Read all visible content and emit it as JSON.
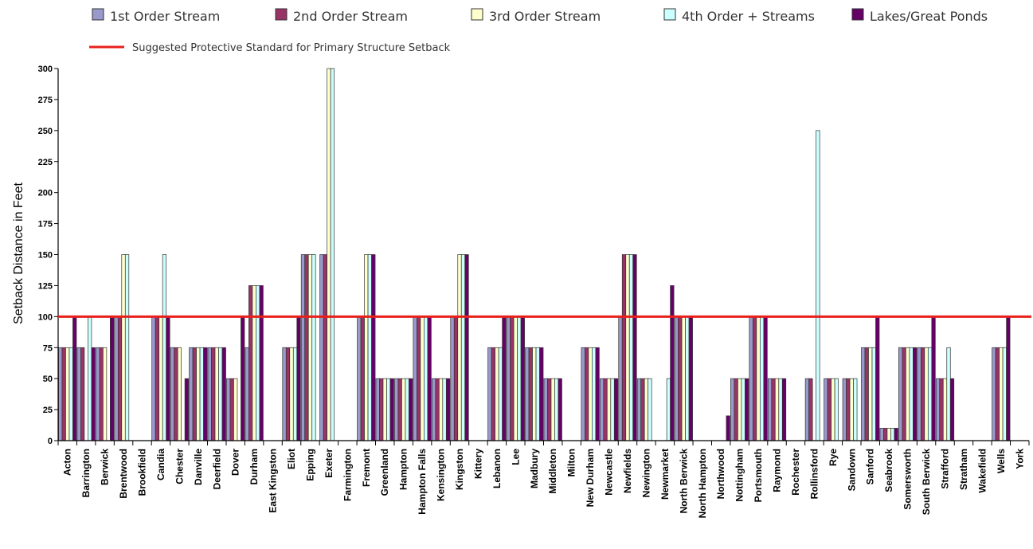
{
  "chart_data": {
    "type": "bar",
    "title": "",
    "xlabel": "",
    "ylabel": "Setback Distance in Feet",
    "ylim": [
      0,
      300
    ],
    "yticks": [
      0,
      25,
      50,
      75,
      100,
      125,
      150,
      175,
      200,
      225,
      250,
      275,
      300
    ],
    "grid": false,
    "legend_position": "top",
    "categories": [
      "Acton",
      "Barrington",
      "Berwick",
      "Brentwood",
      "Brookfield",
      "Candia",
      "Chester",
      "Danville",
      "Deerfield",
      "Dover",
      "Durham",
      "East Kingston",
      "Eliot",
      "Epping",
      "Exeter",
      "Farmington",
      "Fremont",
      "Greenland",
      "Hampton",
      "Hampton Falls",
      "Kensington",
      "Kingston",
      "Kittery",
      "Lebanon",
      "Lee",
      "Madbury",
      "Middleton",
      "Milton",
      "New Durham",
      "Newcastle",
      "Newfields",
      "Newington",
      "Newmarket",
      "North Berwick",
      "North Hampton",
      "Northwood",
      "Nottingham",
      "Portsmouth",
      "Raymond",
      "Rochester",
      "Rollinsford",
      "Rye",
      "Sandown",
      "Sanford",
      "Seabrook",
      "Somersworth",
      "South Berwick",
      "Strafford",
      "Stratham",
      "Wakefield",
      "Wells",
      "York"
    ],
    "series": [
      {
        "name": "1st Order Stream",
        "color": "#9999cc",
        "values": [
          75,
          75,
          75,
          100,
          null,
          100,
          75,
          75,
          75,
          50,
          75,
          null,
          75,
          150,
          150,
          null,
          100,
          50,
          50,
          100,
          50,
          100,
          null,
          75,
          100,
          75,
          50,
          null,
          75,
          50,
          100,
          50,
          null,
          100,
          null,
          null,
          50,
          100,
          50,
          null,
          50,
          50,
          50,
          75,
          10,
          75,
          75,
          50,
          null,
          null,
          75,
          null
        ]
      },
      {
        "name": "2nd Order Stream",
        "color": "#993366",
        "values": [
          75,
          75,
          75,
          100,
          null,
          100,
          75,
          75,
          75,
          50,
          125,
          null,
          75,
          150,
          150,
          null,
          100,
          50,
          50,
          100,
          50,
          100,
          null,
          75,
          100,
          75,
          50,
          null,
          75,
          50,
          150,
          50,
          null,
          100,
          null,
          null,
          50,
          100,
          50,
          null,
          50,
          50,
          50,
          75,
          10,
          75,
          75,
          50,
          null,
          null,
          75,
          null
        ]
      },
      {
        "name": "3rd Order Stream",
        "color": "#ffffcc",
        "values": [
          75,
          null,
          75,
          150,
          null,
          100,
          75,
          75,
          75,
          50,
          125,
          null,
          75,
          150,
          300,
          null,
          150,
          50,
          50,
          100,
          50,
          150,
          null,
          75,
          100,
          75,
          50,
          null,
          75,
          50,
          150,
          50,
          null,
          100,
          null,
          null,
          50,
          100,
          50,
          null,
          null,
          50,
          50,
          75,
          10,
          75,
          75,
          50,
          null,
          null,
          75,
          null
        ]
      },
      {
        "name": "4th Order + Streams",
        "color": "#ccffff",
        "values": [
          75,
          100,
          null,
          150,
          null,
          150,
          null,
          75,
          75,
          null,
          125,
          null,
          75,
          150,
          300,
          null,
          150,
          50,
          50,
          100,
          50,
          150,
          null,
          75,
          100,
          75,
          50,
          null,
          75,
          50,
          150,
          50,
          50,
          100,
          null,
          null,
          50,
          100,
          50,
          null,
          250,
          50,
          50,
          75,
          10,
          75,
          75,
          75,
          null,
          null,
          75,
          null
        ]
      },
      {
        "name": "Lakes/Great Ponds",
        "color": "#660066",
        "values": [
          100,
          75,
          100,
          null,
          null,
          100,
          50,
          75,
          75,
          100,
          125,
          null,
          100,
          null,
          null,
          null,
          150,
          50,
          50,
          100,
          50,
          150,
          null,
          100,
          100,
          75,
          50,
          null,
          75,
          50,
          150,
          null,
          125,
          100,
          null,
          20,
          50,
          100,
          50,
          null,
          null,
          null,
          null,
          100,
          10,
          75,
          100,
          50,
          null,
          null,
          100,
          null
        ]
      }
    ],
    "reference_line": {
      "label": "Suggested Protective Standard for Primary Structure Setback",
      "value": 100,
      "color": "#e8201c"
    }
  }
}
